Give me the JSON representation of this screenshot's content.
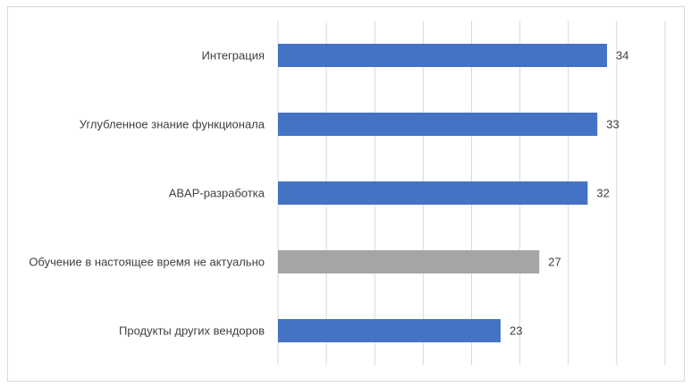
{
  "chart_data": {
    "type": "bar",
    "orientation": "horizontal",
    "categories": [
      "Интеграция",
      "Углубленное знание функционала",
      "ABAP-разработка",
      "Обучение в настоящее время не актуально",
      "Продукты других вендоров"
    ],
    "values": [
      34,
      33,
      32,
      27,
      23
    ],
    "colors": [
      "#4472c4",
      "#4472c4",
      "#4472c4",
      "#a5a5a5",
      "#4472c4"
    ],
    "xlim": [
      0,
      40
    ],
    "xticks": [
      0,
      5,
      10,
      15,
      20,
      25,
      30,
      35,
      40
    ],
    "grid": true
  }
}
